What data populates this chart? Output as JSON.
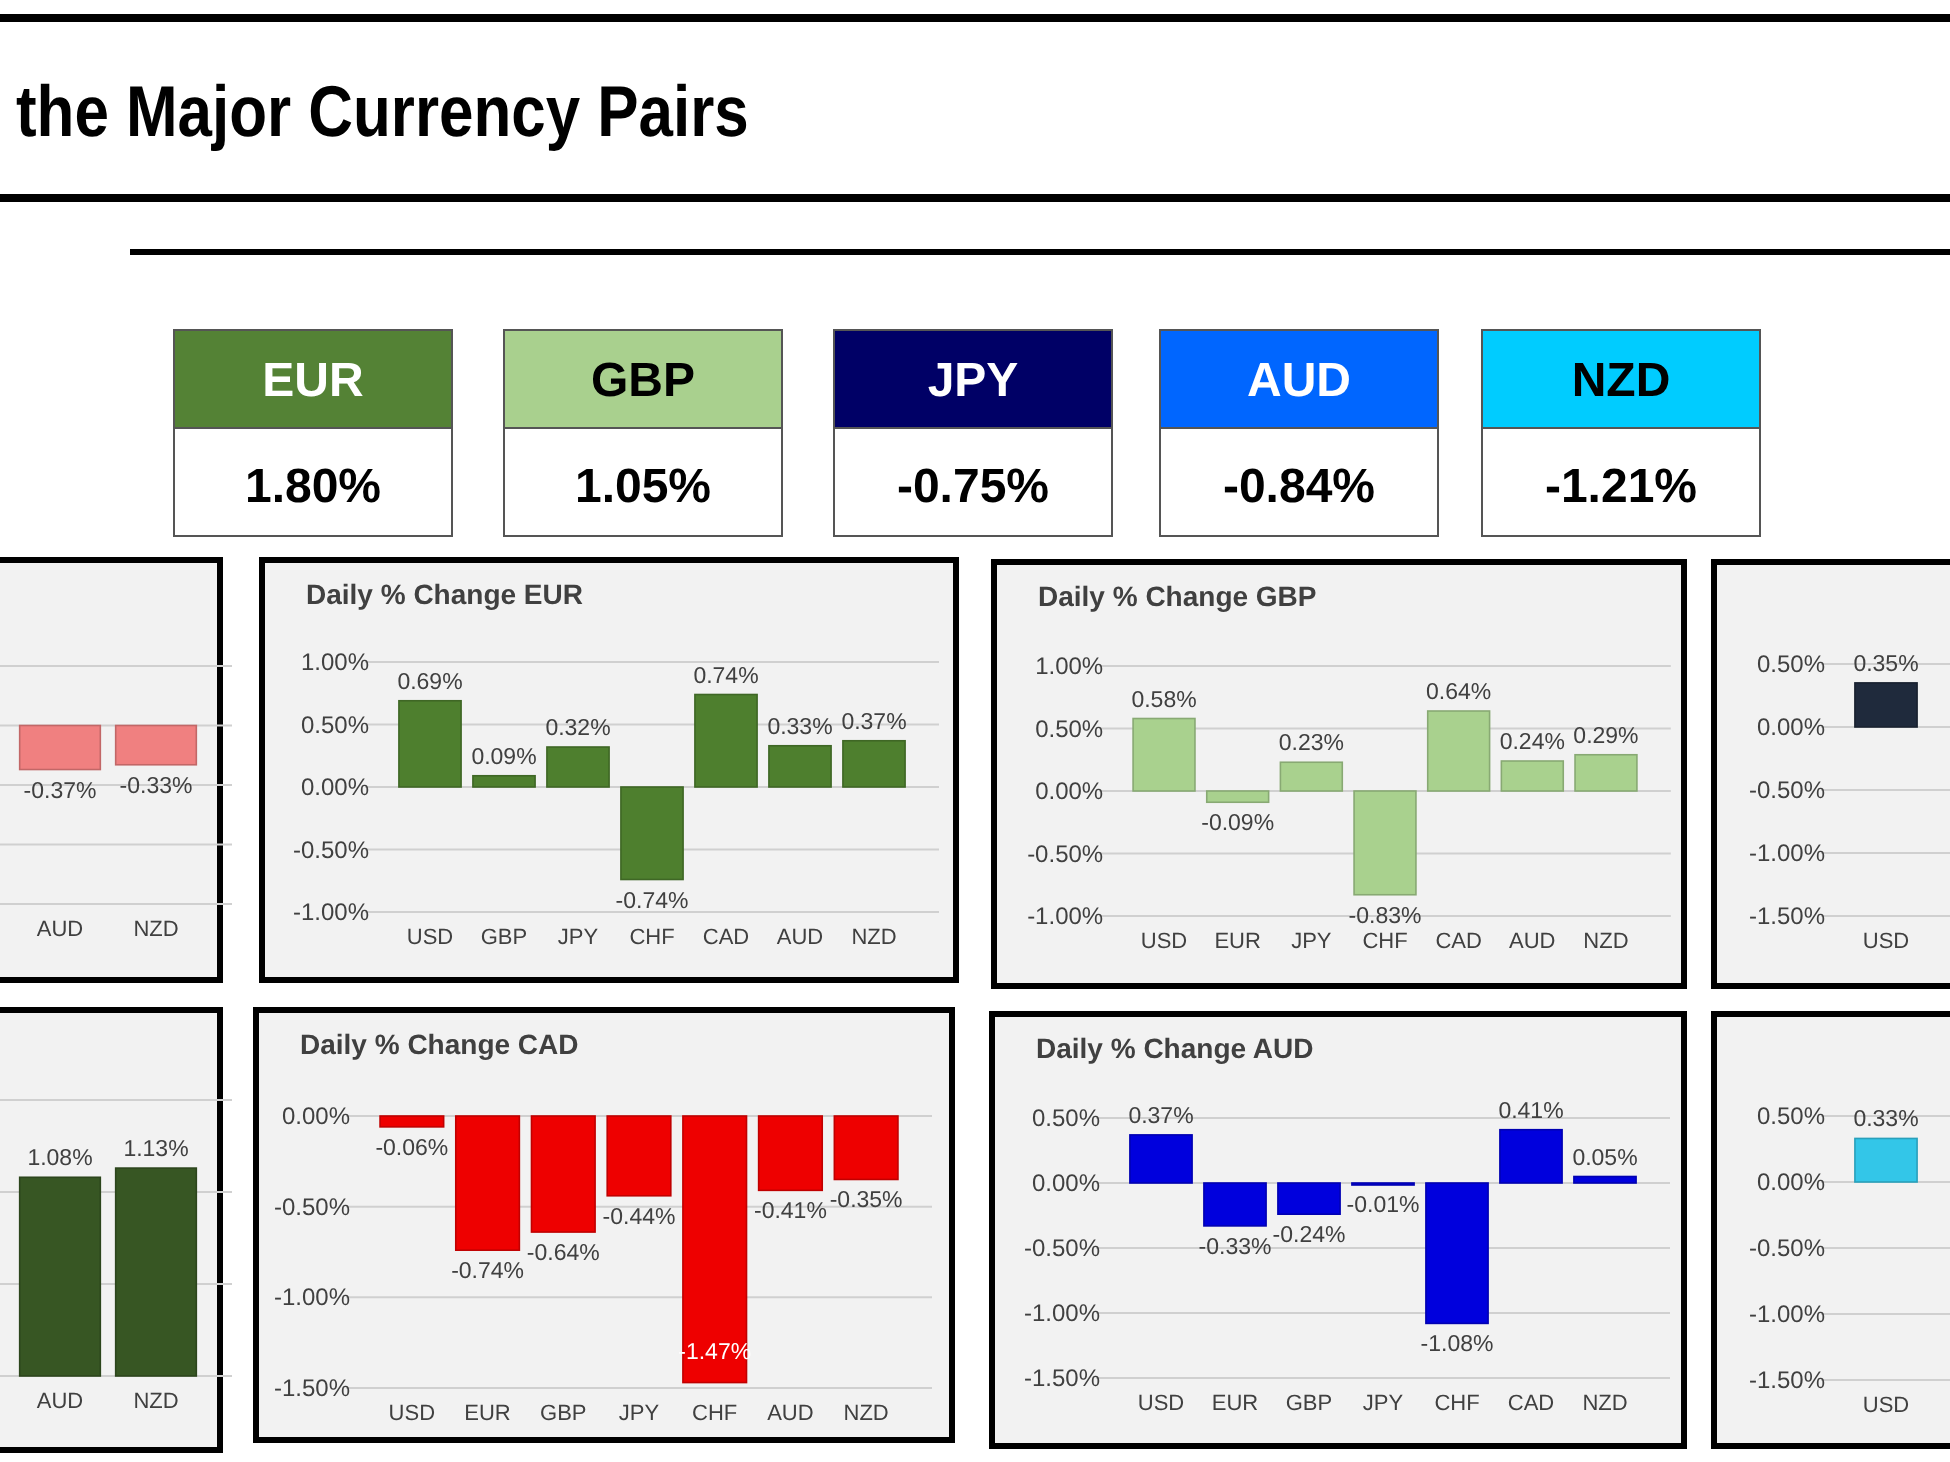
{
  "chart_data": [
    {
      "type": "other",
      "title": "the Major Currency Pairs",
      "categories": [
        "EUR",
        "GBP",
        "JPY",
        "AUD",
        "NZD"
      ],
      "value_labels": [
        "1.80%",
        "1.05%",
        "-0.75%",
        "-0.84%",
        "-1.21%"
      ],
      "colors": [
        "#548235",
        "#a9d08e",
        "#000066",
        "#0066ff",
        "#00ccff"
      ]
    },
    {
      "type": "bar",
      "categories": [
        "AUD",
        "NZD"
      ],
      "values": [
        -0.37,
        -0.33
      ],
      "value_labels": [
        "-0.37%",
        "-0.33%"
      ],
      "color": "#f08080",
      "ylim": [
        -1.5,
        0.5
      ],
      "yticks": [
        {
          "value": 0.5,
          "label": null
        },
        {
          "value": 0,
          "label": null
        },
        {
          "value": -0.5,
          "label": null
        },
        {
          "value": -1,
          "label": null
        },
        {
          "value": -1.5,
          "label": null
        }
      ],
      "grid": "y"
    },
    {
      "type": "bar",
      "title": "Daily % Change EUR",
      "categories": [
        "USD",
        "GBP",
        "JPY",
        "CHF",
        "CAD",
        "AUD",
        "NZD"
      ],
      "values": [
        0.69,
        0.09,
        0.32,
        -0.74,
        0.74,
        0.33,
        0.37
      ],
      "value_labels": [
        "0.69%",
        "0.09%",
        "0.32%",
        "-0.74%",
        "0.74%",
        "0.33%",
        "0.37%"
      ],
      "color": "#4e7f2e",
      "ylim": [
        -1,
        1
      ],
      "yticks": [
        {
          "value": 1,
          "label": "1.00%"
        },
        {
          "value": 0.5,
          "label": "0.50%"
        },
        {
          "value": 0,
          "label": "0.00%"
        },
        {
          "value": -0.5,
          "label": "-0.50%"
        },
        {
          "value": -1,
          "label": "-1.00%"
        }
      ],
      "grid": "y"
    },
    {
      "type": "bar",
      "title": "Daily % Change GBP",
      "categories": [
        "USD",
        "EUR",
        "JPY",
        "CHF",
        "CAD",
        "AUD",
        "NZD"
      ],
      "values": [
        0.58,
        -0.09,
        0.23,
        -0.83,
        0.64,
        0.24,
        0.29
      ],
      "value_labels": [
        "0.58%",
        "-0.09%",
        "0.23%",
        "-0.83%",
        "0.64%",
        "0.24%",
        "0.29%"
      ],
      "color": "#a9d18e",
      "ylim": [
        -1,
        1
      ],
      "yticks": [
        {
          "value": 1,
          "label": "1.00%"
        },
        {
          "value": 0.5,
          "label": "0.50%"
        },
        {
          "value": 0,
          "label": "0.00%"
        },
        {
          "value": -0.5,
          "label": "-0.50%"
        },
        {
          "value": -1,
          "label": "-1.00%"
        }
      ],
      "grid": "y"
    },
    {
      "type": "bar",
      "categories": [
        "USD"
      ],
      "values": [
        0.35
      ],
      "value_labels": [
        "0.35%"
      ],
      "color": "#1f2a3c",
      "ylim": [
        -1.5,
        0.5
      ],
      "yticks": [
        {
          "value": 0.5,
          "label": "0.50%"
        },
        {
          "value": 0,
          "label": "0.00%"
        },
        {
          "value": -0.5,
          "label": "-0.50%"
        },
        {
          "value": -1,
          "label": "-1.00%"
        },
        {
          "value": -1.5,
          "label": "-1.50%"
        }
      ],
      "grid": "y"
    },
    {
      "type": "bar",
      "categories": [
        "AUD",
        "NZD"
      ],
      "values": [
        1.08,
        1.13
      ],
      "value_labels": [
        "1.08%",
        "1.13%"
      ],
      "color": "#375623",
      "ylim": [
        0,
        1.5
      ],
      "yticks": [
        {
          "value": 1.5,
          "label": null
        },
        {
          "value": 1,
          "label": null
        },
        {
          "value": 0.5,
          "label": null
        },
        {
          "value": 0,
          "label": null
        }
      ],
      "grid": "y"
    },
    {
      "type": "bar",
      "title": "Daily % Change CAD",
      "categories": [
        "USD",
        "EUR",
        "GBP",
        "JPY",
        "CHF",
        "AUD",
        "NZD"
      ],
      "values": [
        -0.06,
        -0.74,
        -0.64,
        -0.44,
        -1.47,
        -0.41,
        -0.35
      ],
      "value_labels": [
        "-0.06%",
        "-0.74%",
        "-0.64%",
        "-0.44%",
        "-1.47%",
        "-0.41%",
        "-0.35%"
      ],
      "color": "#ee0000",
      "ylim": [
        -1.5,
        0
      ],
      "yticks": [
        {
          "value": 0,
          "label": "0.00%"
        },
        {
          "value": -0.5,
          "label": "-0.50%"
        },
        {
          "value": -1,
          "label": "-1.00%"
        },
        {
          "value": -1.5,
          "label": "-1.50%"
        }
      ],
      "grid": "y"
    },
    {
      "type": "bar",
      "title": "Daily % Change AUD",
      "categories": [
        "USD",
        "EUR",
        "GBP",
        "JPY",
        "CHF",
        "CAD",
        "NZD"
      ],
      "values": [
        0.37,
        -0.33,
        -0.24,
        -0.01,
        -1.08,
        0.41,
        0.05
      ],
      "value_labels": [
        "0.37%",
        "-0.33%",
        "-0.24%",
        "-0.01%",
        "-1.08%",
        "0.41%",
        "0.05%"
      ],
      "color": "#0000dd",
      "ylim": [
        -1.5,
        0.5
      ],
      "yticks": [
        {
          "value": 0.5,
          "label": "0.50%"
        },
        {
          "value": 0,
          "label": "0.00%"
        },
        {
          "value": -0.5,
          "label": "-0.50%"
        },
        {
          "value": -1,
          "label": "-1.00%"
        },
        {
          "value": -1.5,
          "label": "-1.50%"
        }
      ],
      "grid": "y"
    },
    {
      "type": "bar",
      "categories": [
        "USD"
      ],
      "values": [
        0.33
      ],
      "value_labels": [
        "0.33%"
      ],
      "color": "#33c6e8",
      "ylim": [
        -1.5,
        0.5
      ],
      "yticks": [
        {
          "value": 0.5,
          "label": "0.50%"
        },
        {
          "value": 0,
          "label": "0.00%"
        },
        {
          "value": -0.5,
          "label": "-0.50%"
        },
        {
          "value": -1,
          "label": "-1.00%"
        },
        {
          "value": -1.5,
          "label": "-1.50%"
        }
      ],
      "grid": "y"
    }
  ]
}
